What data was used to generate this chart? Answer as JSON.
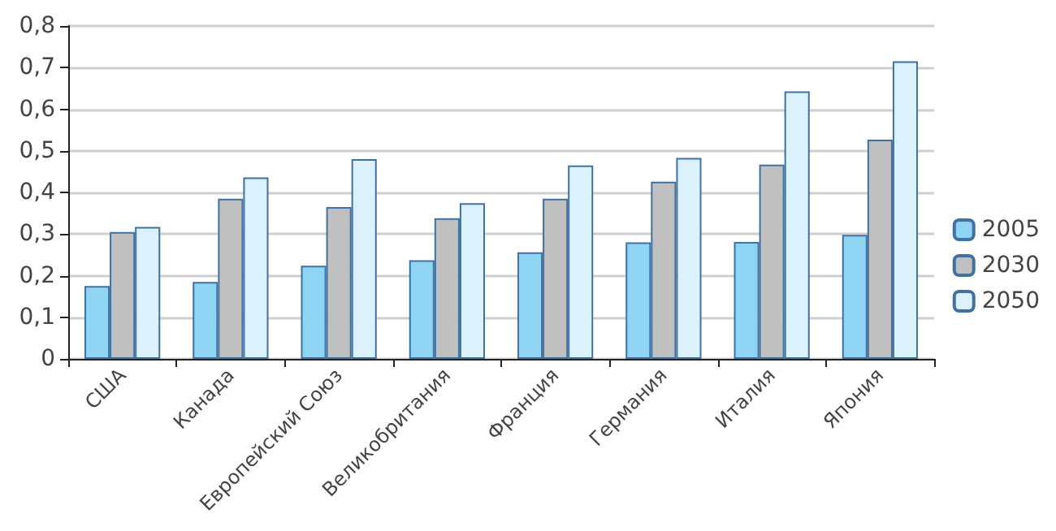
{
  "chart_data": {
    "type": "bar",
    "categories": [
      "США",
      "Канада",
      "Европейский Союз",
      "Великобритания",
      "Франция",
      "Германия",
      "Италия",
      "Япония"
    ],
    "series": [
      {
        "name": "2005",
        "color": "#8fd4f2",
        "values": [
          0.175,
          0.185,
          0.224,
          0.237,
          0.256,
          0.28,
          0.281,
          0.298
        ]
      },
      {
        "name": "2030",
        "color": "#c0c0c0",
        "values": [
          0.305,
          0.385,
          0.365,
          0.338,
          0.385,
          0.426,
          0.467,
          0.527
        ]
      },
      {
        "name": "2050",
        "color": "#dbf1fb",
        "values": [
          0.317,
          0.436,
          0.48,
          0.374,
          0.465,
          0.483,
          0.643,
          0.715
        ]
      }
    ],
    "ylim": [
      0,
      0.8
    ],
    "yticks": [
      {
        "value": 0,
        "label": "0"
      },
      {
        "value": 0.1,
        "label": "0,1"
      },
      {
        "value": 0.2,
        "label": "0,2"
      },
      {
        "value": 0.3,
        "label": "0,3"
      },
      {
        "value": 0.4,
        "label": "0,4"
      },
      {
        "value": 0.5,
        "label": "0,5"
      },
      {
        "value": 0.6,
        "label": "0,6"
      },
      {
        "value": 0.7,
        "label": "0,7"
      },
      {
        "value": 0.8,
        "label": "0,8"
      }
    ],
    "grid": "y",
    "legend": "right"
  }
}
